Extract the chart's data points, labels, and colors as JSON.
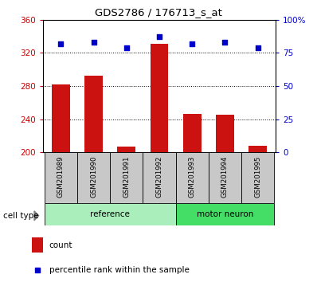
{
  "title": "GDS2786 / 176713_s_at",
  "samples": [
    "GSM201989",
    "GSM201990",
    "GSM201991",
    "GSM201992",
    "GSM201993",
    "GSM201994",
    "GSM201995"
  ],
  "counts": [
    282,
    292,
    207,
    331,
    246,
    245,
    208
  ],
  "percentile_ranks": [
    82,
    83,
    79,
    87,
    82,
    83,
    79
  ],
  "ylim_left": [
    200,
    360
  ],
  "ylim_right": [
    0,
    100
  ],
  "yticks_left": [
    200,
    240,
    280,
    320,
    360
  ],
  "yticks_right": [
    0,
    25,
    50,
    75,
    100
  ],
  "yticklabels_right": [
    "0",
    "25",
    "50",
    "75",
    "100%"
  ],
  "bar_color": "#cc1111",
  "scatter_color": "#0000cc",
  "groups": [
    {
      "label": "reference",
      "start": 0,
      "end": 4,
      "color": "#aaeebb"
    },
    {
      "label": "motor neuron",
      "start": 4,
      "end": 7,
      "color": "#44dd66"
    }
  ],
  "cell_type_label": "cell type",
  "legend_count_label": "count",
  "legend_pct_label": "percentile rank within the sample",
  "xlabel_color": "#cc0000",
  "ylabel_right_color": "#0000cc",
  "bar_width": 0.55,
  "tick_header_bg": "#c8c8c8",
  "grid_linestyle": ":"
}
